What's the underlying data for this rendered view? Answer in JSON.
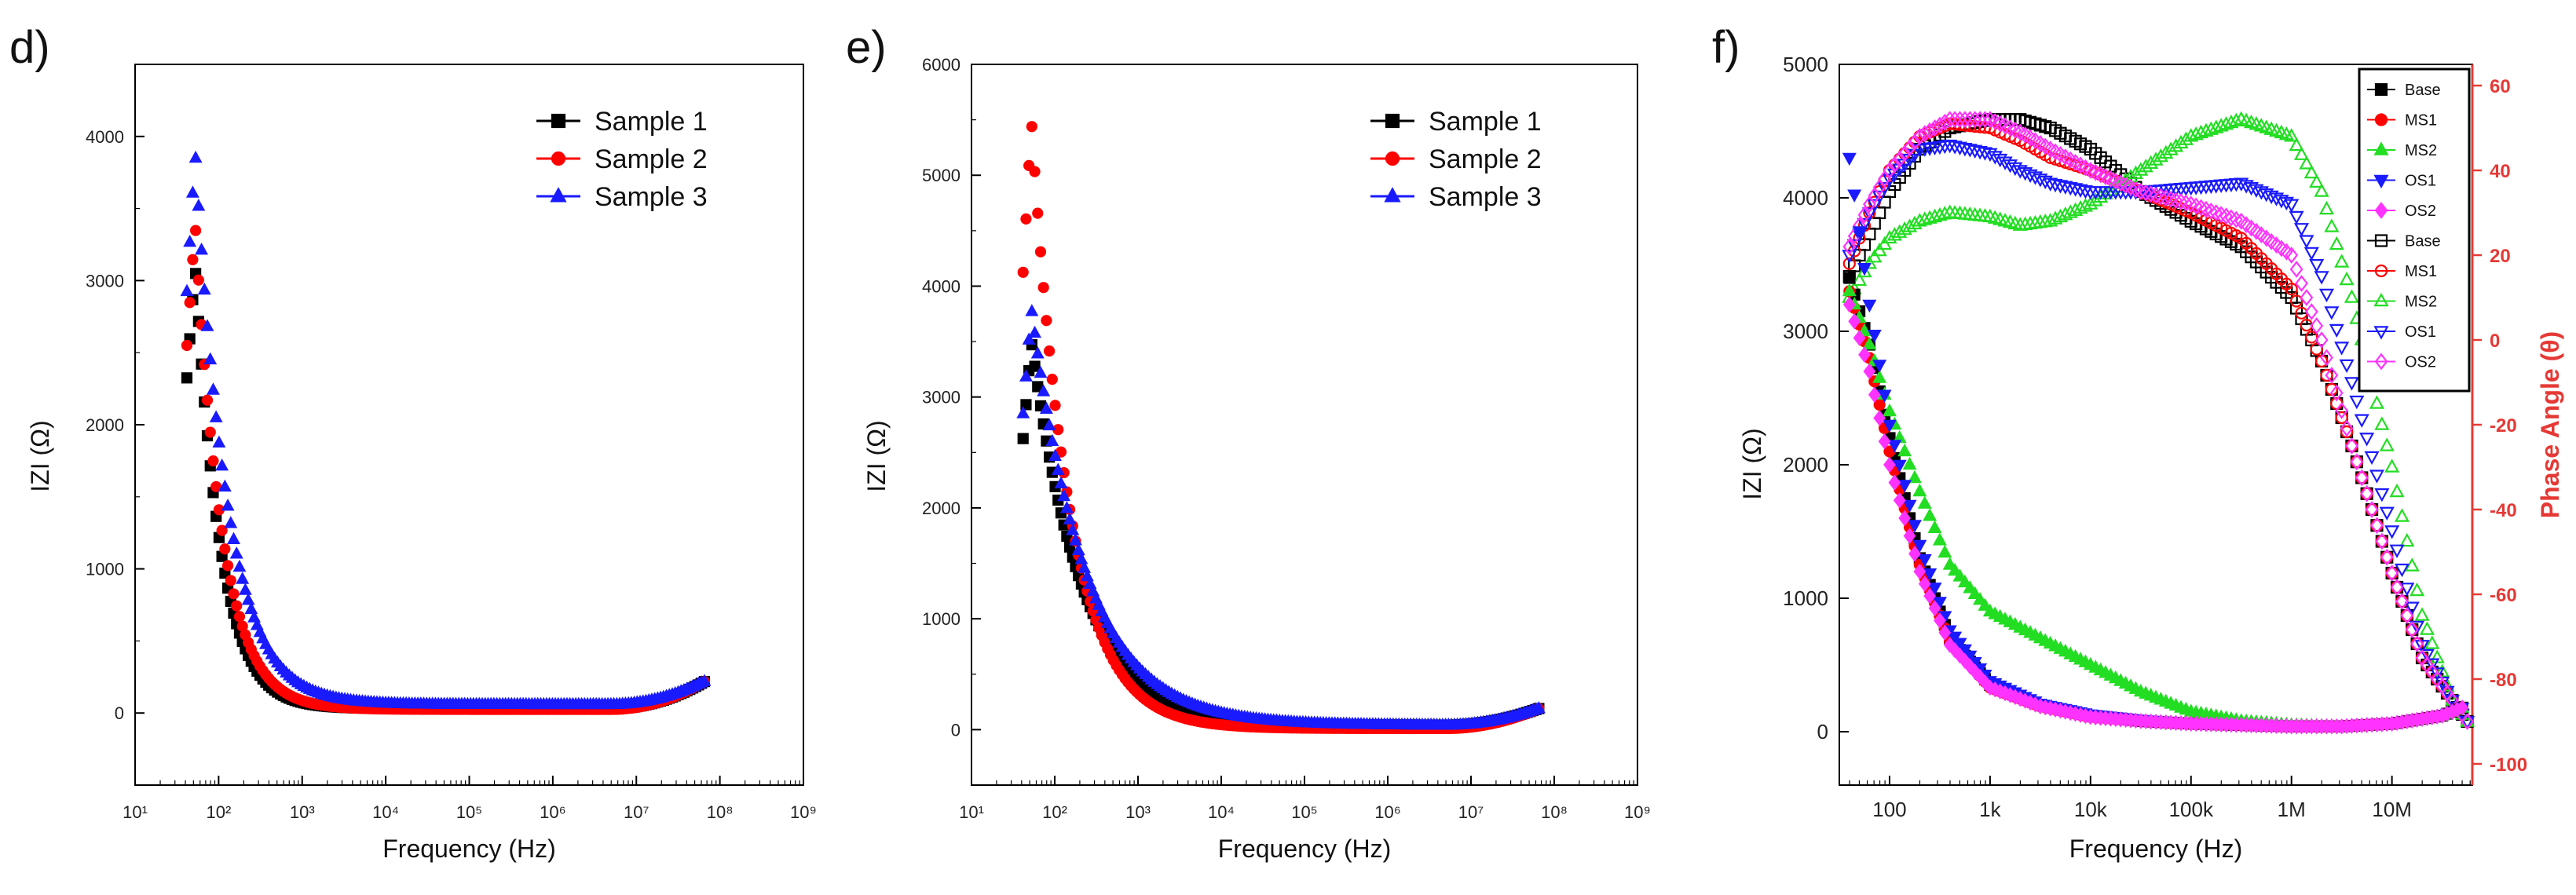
{
  "chart_data": [
    {
      "panel": "d)",
      "type": "scatter",
      "xlabel": "Frequency (Hz)",
      "ylabel": "IZI (Ω)",
      "xscale": "log",
      "xlim": [
        1,
        9
      ],
      "ylim": [
        -500,
        4500
      ],
      "xticks": [
        "10¹",
        "10²",
        "10³",
        "10⁴",
        "10⁵",
        "10⁶",
        "10⁷",
        "10⁸",
        "10⁹"
      ],
      "yticks": [
        0,
        1000,
        2000,
        3000,
        4000
      ],
      "legend_position": "top-right",
      "series": [
        {
          "name": "Sample 1",
          "color": "#000000",
          "marker": "square",
          "peak": 3100,
          "tau": 0.3,
          "min": 30,
          "end": 230
        },
        {
          "name": "Sample 2",
          "color": "#ff0000",
          "marker": "circle",
          "peak": 3400,
          "tau": 0.32,
          "min": 25,
          "end": 230
        },
        {
          "name": "Sample 3",
          "color": "#1a1aff",
          "marker": "triangle",
          "peak": 3900,
          "tau": 0.38,
          "min": 60,
          "end": 230
        }
      ]
    },
    {
      "panel": "e)",
      "type": "scatter",
      "xlabel": "Frequency (Hz)",
      "ylabel": "IZI (Ω)",
      "xscale": "log",
      "xlim": [
        1,
        9
      ],
      "ylim": [
        -500,
        6000
      ],
      "xticks": [
        "10¹",
        "10²",
        "10³",
        "10⁴",
        "10⁵",
        "10⁶",
        "10⁷",
        "10⁸",
        "10⁹"
      ],
      "yticks": [
        0,
        1000,
        2000,
        3000,
        4000,
        5000,
        6000
      ],
      "legend_position": "top-right",
      "series": [
        {
          "name": "Sample 1",
          "color": "#000000",
          "marker": "square",
          "peak": 3500,
          "tau": 0.6,
          "min": 40,
          "end": 200
        },
        {
          "name": "Sample 2",
          "color": "#ff0000",
          "marker": "circle",
          "peak": 5500,
          "tau": 0.45,
          "min": 10,
          "end": 200
        },
        {
          "name": "Sample 3",
          "color": "#1a1aff",
          "marker": "triangle",
          "peak": 3800,
          "tau": 0.65,
          "min": 40,
          "end": 200
        }
      ]
    },
    {
      "panel": "f)",
      "type": "scatter",
      "xlabel": "Frequency (Hz)",
      "ylabel": "IZI (Ω)",
      "y2label": "Phase Angle (θ)",
      "xscale": "log",
      "xlim": [
        1.5,
        7.8
      ],
      "ylim": [
        -400,
        5000
      ],
      "y2lim": [
        -105,
        65
      ],
      "xticks": [
        "100",
        "1k",
        "10k",
        "100k",
        "1M",
        "10M"
      ],
      "yticks": [
        0,
        1000,
        2000,
        3000,
        4000,
        5000
      ],
      "y2ticks": [
        -100,
        -80,
        -60,
        -40,
        -20,
        0,
        20,
        40,
        60
      ],
      "legend_position": "top-right",
      "legend": [
        "Base",
        "MS1",
        "MS2",
        "OS1",
        "OS2",
        "Base",
        "MS1",
        "MS2",
        "OS1",
        "OS2"
      ],
      "impedance_series": [
        {
          "name": "Base",
          "color": "#000000",
          "marker": "square",
          "filled": true
        },
        {
          "name": "MS1",
          "color": "#ff0000",
          "marker": "circle",
          "filled": true
        },
        {
          "name": "MS2",
          "color": "#22dd22",
          "marker": "triangle",
          "filled": true
        },
        {
          "name": "OS1",
          "color": "#1a1aff",
          "marker": "triangle-down",
          "filled": true
        },
        {
          "name": "OS2",
          "color": "#ff33ff",
          "marker": "diamond",
          "filled": true
        }
      ],
      "phase_series": [
        {
          "name": "Base",
          "color": "#000000",
          "marker": "square",
          "filled": false
        },
        {
          "name": "MS1",
          "color": "#ff0000",
          "marker": "circle",
          "filled": false
        },
        {
          "name": "MS2",
          "color": "#22dd22",
          "marker": "triangle",
          "filled": false
        },
        {
          "name": "OS1",
          "color": "#1a1aff",
          "marker": "triangle-down",
          "filled": false
        },
        {
          "name": "OS2",
          "color": "#ff33ff",
          "marker": "diamond",
          "filled": false
        }
      ],
      "impedance_points": {
        "x": [
          1.6,
          1.8,
          2.0,
          2.3,
          2.6,
          3.0,
          3.5,
          4.0,
          4.5,
          5.0,
          5.5,
          6.0,
          6.5,
          7.0,
          7.5,
          7.7
        ],
        "Base": [
          3400,
          2900,
          2200,
          1300,
          700,
          350,
          200,
          120,
          80,
          60,
          50,
          40,
          40,
          60,
          120,
          180
        ],
        "MS1": [
          3300,
          2800,
          2100,
          1250,
          680,
          330,
          190,
          110,
          80,
          60,
          50,
          40,
          40,
          60,
          120,
          180
        ],
        "MS2": [
          3300,
          2900,
          2400,
          1800,
          1250,
          900,
          700,
          500,
          300,
          150,
          80,
          50,
          40,
          60,
          120,
          180
        ],
        "OS1": [
          4300,
          3200,
          2300,
          1400,
          760,
          380,
          210,
          130,
          90,
          60,
          50,
          40,
          40,
          60,
          120,
          180
        ],
        "OS2": [
          3200,
          2700,
          2000,
          1200,
          650,
          330,
          190,
          110,
          80,
          60,
          50,
          40,
          40,
          60,
          120,
          180
        ]
      },
      "phase_points": {
        "x": [
          1.6,
          1.8,
          2.0,
          2.3,
          2.6,
          3.0,
          3.3,
          3.6,
          4.0,
          4.5,
          5.0,
          5.5,
          6.0,
          6.3,
          6.6,
          7.0,
          7.3,
          7.6,
          7.75
        ],
        "Base": [
          15,
          25,
          35,
          45,
          50,
          52,
          52,
          50,
          45,
          35,
          28,
          22,
          10,
          -5,
          -25,
          -55,
          -75,
          -85,
          -90
        ],
        "MS1": [
          18,
          30,
          40,
          48,
          51,
          50,
          47,
          43,
          40,
          35,
          30,
          24,
          12,
          -5,
          -25,
          -55,
          -75,
          -85,
          -90
        ],
        "MS2": [
          10,
          18,
          24,
          28,
          30,
          29,
          27,
          28,
          32,
          40,
          48,
          52,
          48,
          35,
          10,
          -30,
          -65,
          -85,
          -90
        ],
        "OS1": [
          20,
          30,
          38,
          45,
          46,
          44,
          40,
          37,
          35,
          35,
          36,
          37,
          32,
          15,
          -10,
          -45,
          -72,
          -85,
          -90
        ],
        "OS2": [
          22,
          32,
          40,
          48,
          52,
          52,
          49,
          45,
          40,
          35,
          32,
          28,
          20,
          0,
          -25,
          -55,
          -75,
          -85,
          -90
        ]
      }
    }
  ]
}
